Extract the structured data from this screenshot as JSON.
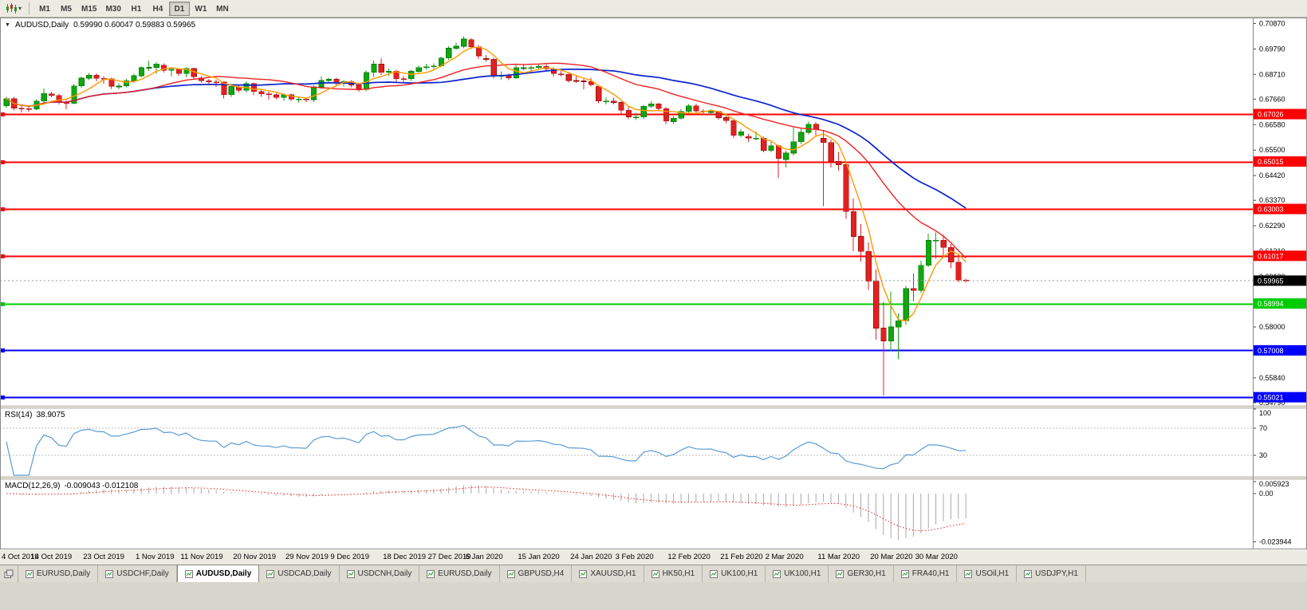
{
  "icons": {
    "chart_menu": "▼",
    "dropdown": "▾"
  },
  "toolbar": {
    "timeframes": [
      "M1",
      "M5",
      "M15",
      "M30",
      "H1",
      "H4",
      "D1",
      "W1",
      "MN"
    ],
    "active_timeframe": "D1"
  },
  "main": {
    "title": "AUDUSD,Daily",
    "ohlc": "0.59990 0.60047 0.59883 0.59965"
  },
  "tabs": {
    "active_index": 2,
    "items": [
      "EURUSD,Daily",
      "USDCHF,Daily",
      "AUDUSD,Daily",
      "USDCAD,Daily",
      "USDCNH,Daily",
      "EURUSD,Daily",
      "GBPUSD,H4",
      "XAUUSD,H1",
      "HK50,H1",
      "UK100,H1",
      "UK100,H1",
      "GER30,H1",
      "FRA40,H1",
      "USOil,H1",
      "USDJPY,H1"
    ]
  },
  "chart_data": {
    "type": "candlestick",
    "symbol": "AUDUSD",
    "timeframe": "Daily",
    "current": {
      "open": "0.59990",
      "high": "0.60047",
      "low": "0.59883",
      "close": "0.59965"
    },
    "colors": {
      "up": "#10a710",
      "up_border": "#0b7a0b",
      "down": "#e32020",
      "down_border": "#9c1313"
    },
    "price_scale": [
      "0.70870",
      "0.69790",
      "0.68710",
      "0.67660",
      "0.66580",
      "0.65500",
      "0.64420",
      "0.63370",
      "0.62290",
      "0.61210",
      "0.60130",
      "0.59050",
      "0.58000",
      "0.56920",
      "0.55840",
      "0.54790"
    ],
    "hlines": [
      {
        "value": 0.67026,
        "label": "0.67026",
        "color": "#ff0000",
        "width": 1.6
      },
      {
        "value": 0.65015,
        "label": "0.65015",
        "color": "#ff0000",
        "width": 1.6
      },
      {
        "value": 0.63003,
        "label": "0.63003",
        "color": "#ff0000",
        "width": 1.6
      },
      {
        "value": 0.61017,
        "label": "0.61017",
        "color": "#ff0000",
        "width": 1.6
      },
      {
        "value": 0.58994,
        "label": "0.58994",
        "color": "#00cc00",
        "width": 2
      },
      {
        "value": 0.57008,
        "label": "0.57008",
        "color": "#0000ff",
        "width": 2
      },
      {
        "value": 0.55021,
        "label": "0.55021",
        "color": "#0000ff",
        "width": 2
      }
    ],
    "current_price": {
      "value": 0.59965,
      "label": "0.59965",
      "badge_color": "#000000"
    },
    "moving_averages": [
      {
        "period": 34,
        "color": "#0b23cc",
        "width": 1.7
      },
      {
        "period": 20,
        "color": "#ee2222",
        "width": 1.4
      },
      {
        "period": 5,
        "color": "#ff9900",
        "width": 1.4
      }
    ],
    "x_labels": [
      {
        "i": 0,
        "t": "4 Oct 2019"
      },
      {
        "i": 6,
        "t": "14 Oct 2019"
      },
      {
        "i": 13,
        "t": "23 Oct 2019"
      },
      {
        "i": 20,
        "t": "1 Nov 2019"
      },
      {
        "i": 26,
        "t": "11 Nov 2019"
      },
      {
        "i": 33,
        "t": "20 Nov 2019"
      },
      {
        "i": 40,
        "t": "29 Nov 2019"
      },
      {
        "i": 46,
        "t": "9 Dec 2019"
      },
      {
        "i": 53,
        "t": "18 Dec 2019"
      },
      {
        "i": 59,
        "t": "27 Dec 2019"
      },
      {
        "i": 64,
        "t": "6 Jan 2020"
      },
      {
        "i": 71,
        "t": "15 Jan 2020"
      },
      {
        "i": 78,
        "t": "24 Jan 2020"
      },
      {
        "i": 84,
        "t": "3 Feb 2020"
      },
      {
        "i": 91,
        "t": "12 Feb 2020"
      },
      {
        "i": 98,
        "t": "21 Feb 2020"
      },
      {
        "i": 104,
        "t": "2 Mar 2020"
      },
      {
        "i": 111,
        "t": "11 Mar 2020"
      },
      {
        "i": 118,
        "t": "20 Mar 2020"
      },
      {
        "i": 124,
        "t": "30 Mar 2020"
      }
    ],
    "candles": [
      [
        0.6738,
        0.6775,
        0.6729,
        0.6768
      ],
      [
        0.6768,
        0.6776,
        0.6718,
        0.6727
      ],
      [
        0.6727,
        0.6741,
        0.671,
        0.6726
      ],
      [
        0.6726,
        0.6737,
        0.6711,
        0.6725
      ],
      [
        0.6725,
        0.6765,
        0.6719,
        0.6758
      ],
      [
        0.6758,
        0.6811,
        0.6752,
        0.679
      ],
      [
        0.6788,
        0.6797,
        0.6774,
        0.6782
      ],
      [
        0.6782,
        0.6789,
        0.6744,
        0.6753
      ],
      [
        0.6753,
        0.6762,
        0.6723,
        0.6748
      ],
      [
        0.6748,
        0.683,
        0.6745,
        0.6822
      ],
      [
        0.6822,
        0.6861,
        0.6812,
        0.6855
      ],
      [
        0.6855,
        0.6877,
        0.6847,
        0.6868
      ],
      [
        0.6868,
        0.6875,
        0.6842,
        0.6854
      ],
      [
        0.6854,
        0.6863,
        0.6831,
        0.6852
      ],
      [
        0.6852,
        0.6857,
        0.6809,
        0.6821
      ],
      [
        0.6821,
        0.6833,
        0.6808,
        0.6821
      ],
      [
        0.6823,
        0.6851,
        0.6816,
        0.6843
      ],
      [
        0.6843,
        0.6873,
        0.6837,
        0.6865
      ],
      [
        0.6865,
        0.6906,
        0.6859,
        0.6899
      ],
      [
        0.6899,
        0.693,
        0.6886,
        0.6901
      ],
      [
        0.6901,
        0.6923,
        0.6874,
        0.6915
      ],
      [
        0.691,
        0.6917,
        0.6879,
        0.6888
      ],
      [
        0.6888,
        0.6899,
        0.6861,
        0.6893
      ],
      [
        0.6893,
        0.6898,
        0.6865,
        0.6874
      ],
      [
        0.6874,
        0.6901,
        0.6859,
        0.6896
      ],
      [
        0.6896,
        0.6899,
        0.6852,
        0.6862
      ],
      [
        0.6856,
        0.6863,
        0.6836,
        0.6844
      ],
      [
        0.6844,
        0.6852,
        0.6828,
        0.6839
      ],
      [
        0.6839,
        0.6849,
        0.6817,
        0.6838
      ],
      [
        0.6838,
        0.6841,
        0.6769,
        0.6785
      ],
      [
        0.6785,
        0.6826,
        0.6776,
        0.682
      ],
      [
        0.6817,
        0.6824,
        0.6795,
        0.6803
      ],
      [
        0.6803,
        0.6841,
        0.6794,
        0.6832
      ],
      [
        0.6832,
        0.6836,
        0.6783,
        0.6798
      ],
      [
        0.6798,
        0.6808,
        0.6776,
        0.6788
      ],
      [
        0.6788,
        0.6798,
        0.6763,
        0.6786
      ],
      [
        0.6784,
        0.6791,
        0.6765,
        0.6773
      ],
      [
        0.6773,
        0.6791,
        0.6759,
        0.6784
      ],
      [
        0.6784,
        0.6789,
        0.6759,
        0.6766
      ],
      [
        0.6766,
        0.6775,
        0.6752,
        0.6766
      ],
      [
        0.6766,
        0.6774,
        0.6754,
        0.6763
      ],
      [
        0.6764,
        0.6825,
        0.6753,
        0.6818
      ],
      [
        0.6818,
        0.6863,
        0.6809,
        0.6845
      ],
      [
        0.6845,
        0.6857,
        0.6834,
        0.685
      ],
      [
        0.685,
        0.6856,
        0.6822,
        0.6835
      ],
      [
        0.6835,
        0.6847,
        0.682,
        0.684
      ],
      [
        0.684,
        0.6846,
        0.6816,
        0.6826
      ],
      [
        0.6826,
        0.6832,
        0.6798,
        0.6808
      ],
      [
        0.6808,
        0.6887,
        0.6799,
        0.688
      ],
      [
        0.688,
        0.6929,
        0.686,
        0.6914
      ],
      [
        0.6914,
        0.6939,
        0.6868,
        0.688
      ],
      [
        0.688,
        0.6896,
        0.6866,
        0.6885
      ],
      [
        0.6885,
        0.6891,
        0.6836,
        0.6853
      ],
      [
        0.6853,
        0.6863,
        0.6838,
        0.6852
      ],
      [
        0.6852,
        0.6891,
        0.6843,
        0.6884
      ],
      [
        0.6884,
        0.6909,
        0.6876,
        0.69
      ],
      [
        0.69,
        0.6916,
        0.689,
        0.6903
      ],
      [
        0.6903,
        0.6918,
        0.6894,
        0.6907
      ],
      [
        0.6907,
        0.6946,
        0.6901,
        0.694
      ],
      [
        0.694,
        0.699,
        0.6933,
        0.6982
      ],
      [
        0.6982,
        0.7006,
        0.6975,
        0.699
      ],
      [
        0.699,
        0.7032,
        0.6981,
        0.7021
      ],
      [
        0.7018,
        0.7024,
        0.6979,
        0.6988
      ],
      [
        0.6988,
        0.6995,
        0.6937,
        0.695
      ],
      [
        0.6938,
        0.6953,
        0.6924,
        0.6935
      ],
      [
        0.6935,
        0.6941,
        0.6853,
        0.6866
      ],
      [
        0.6866,
        0.6884,
        0.6849,
        0.6867
      ],
      [
        0.6867,
        0.6876,
        0.6847,
        0.6857
      ],
      [
        0.6857,
        0.6911,
        0.6851,
        0.69
      ],
      [
        0.6898,
        0.6913,
        0.6889,
        0.6899
      ],
      [
        0.6899,
        0.6908,
        0.6883,
        0.69
      ],
      [
        0.69,
        0.6913,
        0.6892,
        0.6904
      ],
      [
        0.6904,
        0.6914,
        0.6884,
        0.6895
      ],
      [
        0.6895,
        0.6901,
        0.6862,
        0.6875
      ],
      [
        0.6873,
        0.6885,
        0.6862,
        0.6871
      ],
      [
        0.6871,
        0.6878,
        0.6836,
        0.6845
      ],
      [
        0.6845,
        0.6867,
        0.6835,
        0.6843
      ],
      [
        0.6843,
        0.6851,
        0.6807,
        0.6841
      ],
      [
        0.6841,
        0.6856,
        0.6819,
        0.6827
      ],
      [
        0.682,
        0.6825,
        0.6748,
        0.6758
      ],
      [
        0.6758,
        0.6773,
        0.6743,
        0.6758
      ],
      [
        0.6758,
        0.6772,
        0.6744,
        0.6752
      ],
      [
        0.6752,
        0.6757,
        0.6698,
        0.6719
      ],
      [
        0.6719,
        0.6734,
        0.6681,
        0.6691
      ],
      [
        0.6689,
        0.6708,
        0.6677,
        0.669
      ],
      [
        0.669,
        0.6741,
        0.6683,
        0.6736
      ],
      [
        0.6736,
        0.6757,
        0.6728,
        0.6746
      ],
      [
        0.6746,
        0.6751,
        0.6715,
        0.6726
      ],
      [
        0.6726,
        0.6734,
        0.6661,
        0.6673
      ],
      [
        0.667,
        0.6695,
        0.6661,
        0.6685
      ],
      [
        0.6685,
        0.6723,
        0.6679,
        0.6714
      ],
      [
        0.6714,
        0.6745,
        0.6709,
        0.6738
      ],
      [
        0.6738,
        0.6746,
        0.6703,
        0.6716
      ],
      [
        0.6716,
        0.6724,
        0.6699,
        0.6712
      ],
      [
        0.6712,
        0.6724,
        0.6701,
        0.6713
      ],
      [
        0.6713,
        0.6717,
        0.6679,
        0.6688
      ],
      [
        0.6688,
        0.6696,
        0.6664,
        0.6675
      ],
      [
        0.6675,
        0.6679,
        0.6601,
        0.6612
      ],
      [
        0.6612,
        0.6638,
        0.6605,
        0.6627
      ],
      [
        0.6607,
        0.6619,
        0.6584,
        0.6601
      ],
      [
        0.6601,
        0.6628,
        0.6591,
        0.6601
      ],
      [
        0.6601,
        0.6607,
        0.6541,
        0.6548
      ],
      [
        0.6548,
        0.6585,
        0.654,
        0.6568
      ],
      [
        0.6568,
        0.6572,
        0.6433,
        0.6515
      ],
      [
        0.651,
        0.6548,
        0.6476,
        0.6537
      ],
      [
        0.6537,
        0.6646,
        0.6527,
        0.6585
      ],
      [
        0.6585,
        0.6641,
        0.6576,
        0.6625
      ],
      [
        0.6625,
        0.6671,
        0.6617,
        0.666
      ],
      [
        0.666,
        0.6669,
        0.6612,
        0.6639
      ],
      [
        0.66,
        0.6636,
        0.6313,
        0.6582
      ],
      [
        0.6582,
        0.6594,
        0.6476,
        0.6503
      ],
      [
        0.6503,
        0.6541,
        0.6462,
        0.6488
      ],
      [
        0.6488,
        0.6498,
        0.6258,
        0.629
      ],
      [
        0.629,
        0.6344,
        0.6122,
        0.6184
      ],
      [
        0.6184,
        0.6236,
        0.6077,
        0.612
      ],
      [
        0.612,
        0.6158,
        0.5957,
        0.5994
      ],
      [
        0.5994,
        0.6046,
        0.5746,
        0.5795
      ],
      [
        0.5795,
        0.5907,
        0.551,
        0.5741
      ],
      [
        0.5741,
        0.595,
        0.5699,
        0.58
      ],
      [
        0.58,
        0.5858,
        0.5664,
        0.5826
      ],
      [
        0.5826,
        0.5975,
        0.5809,
        0.5963
      ],
      [
        0.5963,
        0.6026,
        0.5909,
        0.5955
      ],
      [
        0.5955,
        0.6081,
        0.5944,
        0.6061
      ],
      [
        0.6061,
        0.6195,
        0.6054,
        0.6167
      ],
      [
        0.6167,
        0.6201,
        0.6089,
        0.6168
      ],
      [
        0.6168,
        0.619,
        0.6092,
        0.6137
      ],
      [
        0.6137,
        0.6151,
        0.6049,
        0.6075
      ],
      [
        0.6075,
        0.6109,
        0.5989,
        0.5999
      ],
      [
        0.5999,
        0.60047,
        0.59883,
        0.59965
      ]
    ],
    "rsi": {
      "name": "RSI(14)",
      "period": 14,
      "value": "38.9075",
      "color": "#5a9bd4",
      "levels": [
        70,
        30
      ],
      "scale": [
        {
          "v": 100,
          "t": "100"
        },
        {
          "v": 70,
          "t": "70"
        },
        {
          "v": 30,
          "t": "30"
        }
      ]
    },
    "macd": {
      "name": "MACD(12,26,9)",
      "fast": 12,
      "slow": 26,
      "signal": 9,
      "values": "-0.009043 -0.012108",
      "histogram_color": "#a8a8a8",
      "signal_color": "#ee2222",
      "scale": [
        {
          "v": 0.005923,
          "t": "0.005923"
        },
        {
          "v": 0,
          "t": "0.00"
        },
        {
          "v": -0.023944,
          "t": "-0.023944"
        }
      ]
    }
  }
}
